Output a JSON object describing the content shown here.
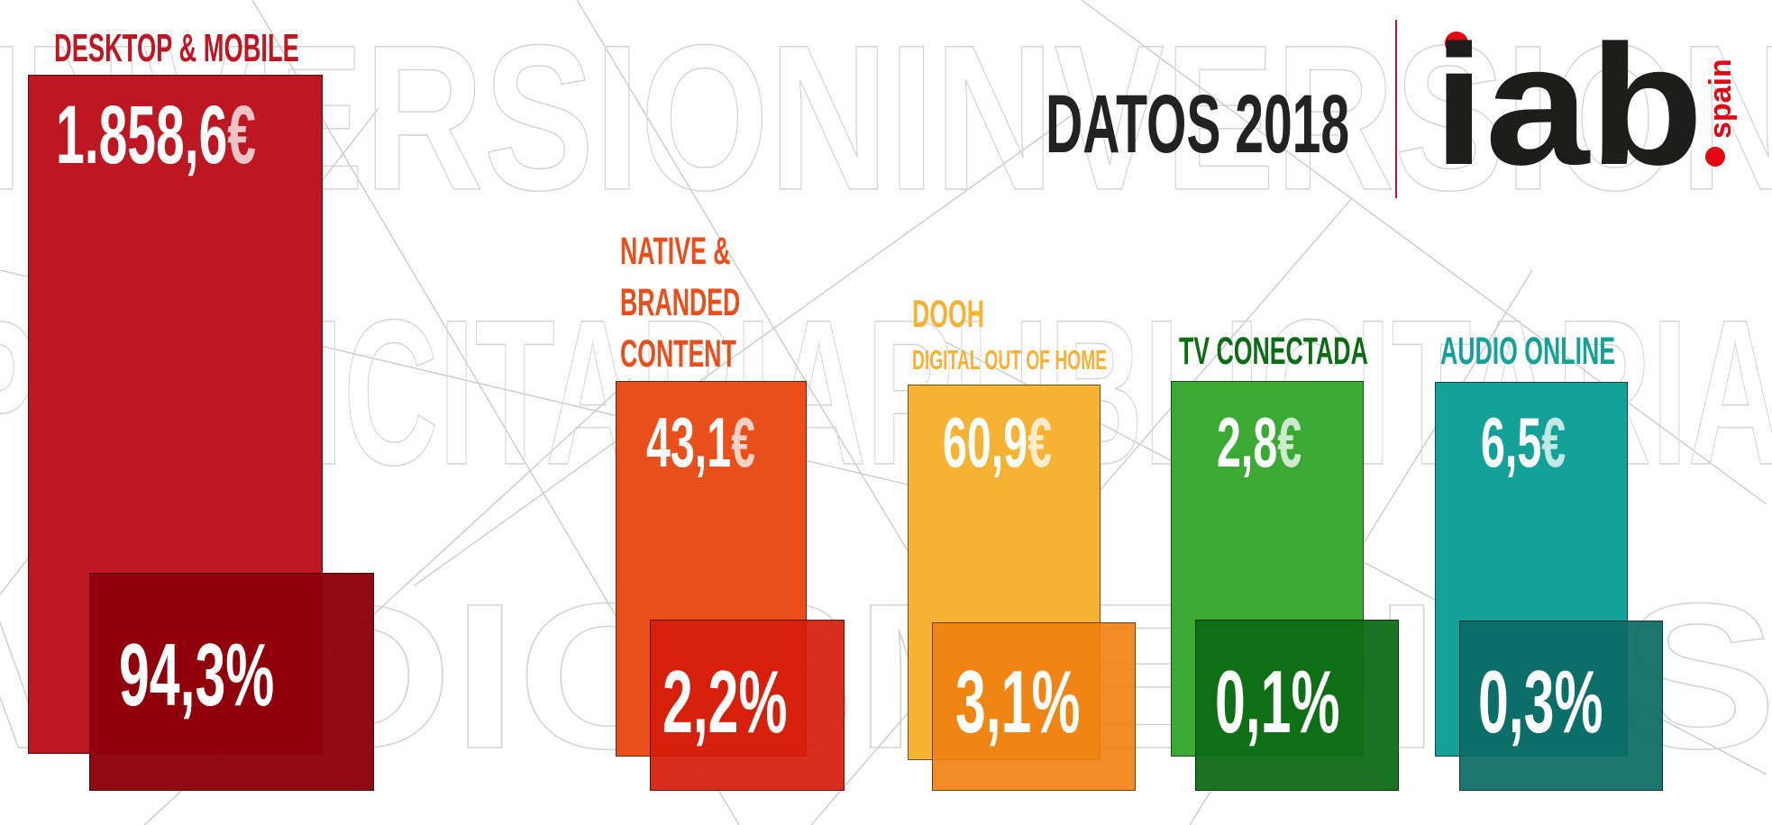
{
  "title": "DATOS 2018",
  "logo": {
    "text": "iab",
    "suffix": "spain"
  },
  "background_words": [
    "INVERSIONINVERSION",
    "PUBLICITARIAPUBLICITARIA",
    "MEDIOSMEDIOS"
  ],
  "chart_data": {
    "type": "bar",
    "categories": [
      "DESKTOP & MOBILE",
      "NATIVE & BRANDED CONTENT",
      "DOOH",
      "TV CONECTADA",
      "AUDIO ONLINE"
    ],
    "series": [
      {
        "values": [
          1858.6,
          43.1,
          60.9,
          2.8,
          6.5
        ]
      },
      {
        "values": [
          94.3,
          2.2,
          3.1,
          0.1,
          0.3
        ]
      }
    ],
    "colors": [
      "#be1622",
      "#e94e1b",
      "#f6b233",
      "#3aaa35",
      "#13a198"
    ],
    "pct_colors": [
      "#8c0009",
      "#d41c0a",
      "#f08010",
      "#0d6b16",
      "#0c6b64"
    ]
  },
  "categories": [
    {
      "label_lines": [
        "DESKTOP & MOBILE"
      ],
      "sublabel": "",
      "value_num": "1.858,6",
      "value_cur": "€",
      "pct": "94,3%",
      "color": "#be1622"
    },
    {
      "label_lines": [
        "NATIVE &",
        "BRANDED",
        "CONTENT"
      ],
      "sublabel": "",
      "value_num": "43,1",
      "value_cur": "€",
      "pct": "2,2%",
      "color": "#e94e1b"
    },
    {
      "label_lines": [
        "DOOH"
      ],
      "sublabel": "DIGITAL OUT OF HOME",
      "value_num": "60,9",
      "value_cur": "€",
      "pct": "3,1%",
      "color": "#f6b233"
    },
    {
      "label_lines": [
        "TV CONECTADA"
      ],
      "sublabel": "",
      "value_num": "2,8",
      "value_cur": "€",
      "pct": "0,1%",
      "color": "#0d6b16"
    },
    {
      "label_lines": [
        "AUDIO ONLINE"
      ],
      "sublabel": "",
      "value_num": "6,5",
      "value_cur": "€",
      "pct": "0,3%",
      "color": "#13a198"
    }
  ]
}
